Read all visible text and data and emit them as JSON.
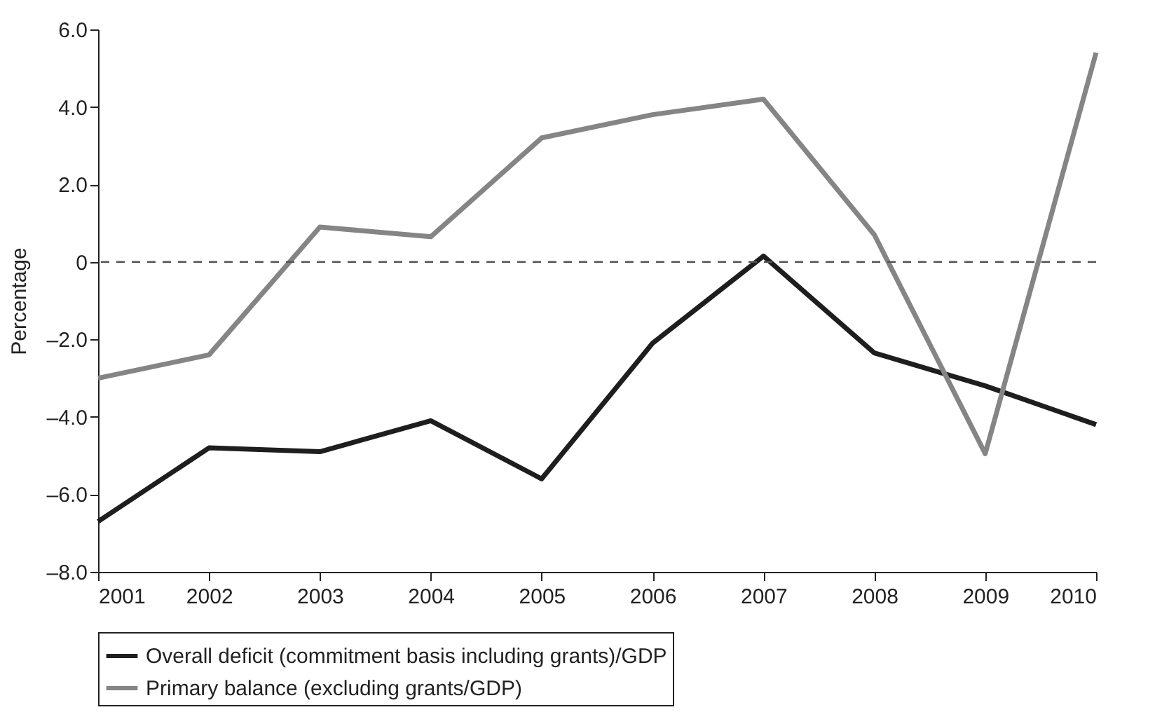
{
  "chart_data": {
    "type": "line",
    "ylabel": "Percentage",
    "x": [
      2001,
      2002,
      2003,
      2004,
      2005,
      2006,
      2007,
      2008,
      2009,
      2010
    ],
    "series": [
      {
        "name": "Overall deficit (commitment basis including grants)/GDP",
        "color": "#1e1e1e",
        "values": [
          -6.7,
          -4.8,
          -4.9,
          -4.1,
          -5.6,
          -2.1,
          0.15,
          -2.35,
          -3.2,
          -4.2
        ]
      },
      {
        "name": "Primary balance (excluding grants/GDP)",
        "color": "#858585",
        "values": [
          -3.0,
          -2.4,
          0.9,
          0.65,
          3.2,
          3.8,
          4.2,
          0.7,
          -4.95,
          5.4
        ]
      }
    ],
    "xlim": [
      2001,
      2010
    ],
    "xticks": [
      2001,
      2002,
      2003,
      2004,
      2005,
      2006,
      2007,
      2008,
      2009,
      2010
    ],
    "ylim": [
      -8,
      6
    ],
    "yticks": [
      {
        "value": -8,
        "label": "–8.0"
      },
      {
        "value": -6,
        "label": "–6.0"
      },
      {
        "value": -4,
        "label": "–4.0"
      },
      {
        "value": -2,
        "label": "–2.0"
      },
      0,
      {
        "value": 2,
        "label": "2.0"
      },
      {
        "value": 4,
        "label": "4.0"
      },
      {
        "value": 6,
        "label": "6.0"
      }
    ],
    "ref_lines": [
      {
        "axis": "y",
        "value": 0,
        "color": "#555555",
        "line_style": "dashed"
      }
    ],
    "grid": false,
    "legend": "bottom",
    "marker": "none",
    "line_style": "solid"
  }
}
